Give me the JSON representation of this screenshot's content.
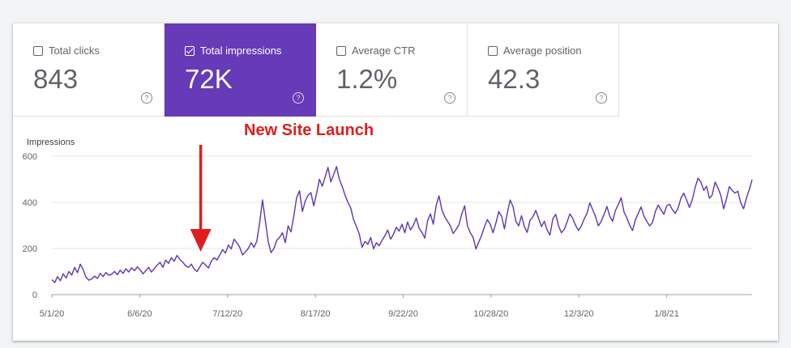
{
  "metrics": [
    {
      "label": "Total clicks",
      "value": "843",
      "checked": false
    },
    {
      "label": "Total impressions",
      "value": "72K",
      "checked": true
    },
    {
      "label": "Average CTR",
      "value": "1.2%",
      "checked": false
    },
    {
      "label": "Average position",
      "value": "42.3",
      "checked": false
    }
  ],
  "help_glyph": "?",
  "annotation": {
    "text": "New Site Launch",
    "color": "#e01d1d"
  },
  "colors": {
    "accent": "#673ab7",
    "line": "#5e35b1",
    "arrow": "#e01d1d"
  },
  "chart_data": {
    "type": "line",
    "ylabel": "Impressions",
    "ylim": [
      0,
      600
    ],
    "yticks": [
      0,
      200,
      400,
      600
    ],
    "xticks": [
      "5/1/20",
      "6/6/20",
      "7/12/20",
      "8/17/20",
      "9/22/20",
      "10/28/20",
      "12/3/20",
      "1/8/21"
    ],
    "x_start": "2020-05-01",
    "x_end": "2021-02-12",
    "grid": true,
    "series": [
      {
        "name": "",
        "values": [
          65,
          52,
          78,
          60,
          90,
          72,
          100,
          85,
          118,
          95,
          132,
          108,
          75,
          62,
          68,
          80,
          70,
          92,
          78,
          96,
          84,
          88,
          100,
          86,
          106,
          92,
          112,
          98,
          116,
          104,
          120,
          108,
          90,
          104,
          118,
          98,
          112,
          128,
          140,
          118,
          150,
          135,
          160,
          145,
          170,
          152,
          140,
          125,
          118,
          132,
          110,
          100,
          120,
          140,
          128,
          115,
          145,
          160,
          150,
          172,
          195,
          180,
          215,
          198,
          240,
          225,
          205,
          172,
          185,
          200,
          225,
          205,
          232,
          312,
          410,
          320,
          230,
          182,
          200,
          235,
          248,
          268,
          225,
          298,
          272,
          340,
          420,
          450,
          360,
          405,
          430,
          442,
          385,
          438,
          500,
          470,
          510,
          552,
          488,
          520,
          555,
          500,
          470,
          430,
          400,
          375,
          325,
          295,
          262,
          205,
          230,
          218,
          248,
          198,
          225,
          212,
          235,
          255,
          280,
          240,
          262,
          292,
          275,
          305,
          268,
          315,
          280,
          300,
          332,
          288,
          270,
          245,
          320,
          350,
          305,
          385,
          428,
          368,
          338,
          318,
          298,
          265,
          282,
          302,
          350,
          385,
          298,
          268,
          248,
          198,
          228,
          258,
          295,
          325,
          305,
          268,
          310,
          360,
          340,
          285,
          355,
          410,
          382,
          318,
          298,
          342,
          295,
          270,
          322,
          338,
          365,
          330,
          295,
          318,
          280,
          258,
          328,
          348,
          298,
          268,
          282,
          315,
          350,
          330,
          300,
          278,
          298,
          328,
          352,
          398,
          368,
          338,
          298,
          318,
          348,
          382,
          340,
          318,
          365,
          390,
          420,
          358,
          332,
          300,
          278,
          325,
          352,
          380,
          340,
          318,
          298,
          312,
          360,
          388,
          368,
          348,
          385,
          392,
          368,
          352,
          375,
          418,
          440,
          410,
          378,
          412,
          465,
          505,
          488,
          452,
          470,
          418,
          432,
          488,
          462,
          430,
          372,
          415,
          468,
          452,
          440,
          448,
          398,
          372,
          418,
          455,
          498
        ]
      }
    ]
  }
}
